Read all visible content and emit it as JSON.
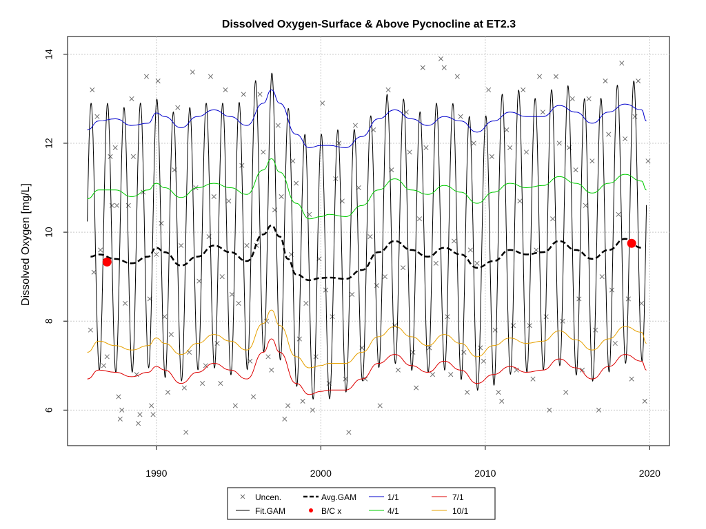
{
  "chart_data": {
    "type": "line",
    "title": "Dissolved Oxygen-Surface & Above Pycnocline at ET2.3",
    "xlabel": "",
    "ylabel": "Dissolved Oxygen [mg/L]",
    "xlim": [
      1984.6,
      2021.2
    ],
    "ylim": [
      5.2,
      14.4
    ],
    "x_ticks": [
      1990,
      2000,
      2010,
      2020
    ],
    "y_ticks": [
      6,
      8,
      10,
      12,
      14
    ],
    "grid": true,
    "legend_position": "bottom",
    "legend": [
      "Uncen.",
      "Fit.GAM",
      "Avg.GAM",
      "B/C x",
      "1/1",
      "4/1",
      "7/1",
      "10/1"
    ],
    "colors": {
      "uncen": "#6e6e6e",
      "fit": "#000000",
      "avg": "#000000",
      "bc": "#ff0000",
      "jan": "#0000cc",
      "apr": "#00cc00",
      "jul": "#dd0000",
      "oct": "#e6a000"
    },
    "bc_points": [
      {
        "x": 1987.0,
        "y": 9.33
      },
      {
        "x": 2018.9,
        "y": 9.75
      }
    ],
    "fit_gam": {
      "description_period_years": 1.0,
      "x_range": [
        1985.8,
        2019.8
      ],
      "annual_max_min": [
        [
          1986,
          12.9,
          6.9
        ],
        [
          1987,
          12.9,
          6.9
        ],
        [
          1988,
          12.8,
          6.8
        ],
        [
          1989,
          12.9,
          6.9
        ],
        [
          1990,
          13.0,
          7.0
        ],
        [
          1991,
          12.7,
          6.5
        ],
        [
          1992,
          12.8,
          6.8
        ],
        [
          1993,
          12.9,
          7.0
        ],
        [
          1994,
          12.9,
          6.9
        ],
        [
          1995,
          12.9,
          6.7
        ],
        [
          1996,
          13.4,
          7.1
        ],
        [
          1997,
          13.6,
          7.5
        ],
        [
          1998,
          12.8,
          6.8
        ],
        [
          1999,
          12.2,
          6.3
        ],
        [
          2000,
          12.2,
          6.2
        ],
        [
          2001,
          12.3,
          6.3
        ],
        [
          2002,
          12.3,
          6.5
        ],
        [
          2003,
          12.6,
          6.8
        ],
        [
          2004,
          13.1,
          7.1
        ],
        [
          2005,
          13.0,
          7.0
        ],
        [
          2006,
          12.7,
          6.8
        ],
        [
          2007,
          12.9,
          6.9
        ],
        [
          2008,
          12.9,
          6.9
        ],
        [
          2009,
          12.6,
          6.5
        ],
        [
          2010,
          12.6,
          6.4
        ],
        [
          2011,
          13.1,
          6.7
        ],
        [
          2012,
          13.2,
          6.9
        ],
        [
          2013,
          13.0,
          6.8
        ],
        [
          2014,
          13.2,
          7.0
        ],
        [
          2015,
          13.3,
          7.0
        ],
        [
          2016,
          13.0,
          6.6
        ],
        [
          2017,
          13.0,
          6.7
        ],
        [
          2018,
          13.3,
          7.0
        ],
        [
          2019,
          13.4,
          7.1
        ]
      ]
    },
    "series": [
      {
        "name": "1/1",
        "key": "jan",
        "x": [
          1985.8,
          1986.5,
          1987.5,
          1988.5,
          1989.5,
          1990.0,
          1990.5,
          1991.5,
          1992.5,
          1993.5,
          1994.5,
          1995.5,
          1996.5,
          1997.0,
          1997.5,
          1998.5,
          1999.3,
          2000.0,
          2000.5,
          2001.5,
          2002.5,
          2003.5,
          2004.5,
          2005.5,
          2006.5,
          2007.5,
          2008.5,
          2009.5,
          2010.5,
          2011.5,
          2012.5,
          2013.5,
          2014.5,
          2015.5,
          2016.5,
          2017.5,
          2018.5,
          2019.5,
          2019.8
        ],
        "y": [
          12.3,
          12.5,
          12.55,
          12.4,
          12.45,
          12.68,
          12.6,
          12.35,
          12.6,
          12.75,
          12.6,
          12.4,
          12.9,
          13.2,
          12.9,
          12.2,
          11.9,
          11.95,
          11.95,
          11.9,
          12.15,
          12.55,
          12.75,
          12.55,
          12.4,
          12.6,
          12.5,
          12.25,
          12.5,
          12.7,
          12.6,
          12.6,
          12.85,
          12.7,
          12.45,
          12.7,
          12.88,
          12.75,
          12.5
        ]
      },
      {
        "name": "4/1",
        "key": "apr",
        "x": [
          1985.8,
          1986.5,
          1987.5,
          1988.5,
          1989.5,
          1990.0,
          1990.5,
          1991.5,
          1992.5,
          1993.5,
          1994.5,
          1995.5,
          1996.5,
          1997.0,
          1997.5,
          1998.5,
          1999.3,
          2000.0,
          2000.5,
          2001.5,
          2002.5,
          2003.5,
          2004.5,
          2005.5,
          2006.5,
          2007.5,
          2008.5,
          2009.5,
          2010.5,
          2011.5,
          2012.5,
          2013.5,
          2014.5,
          2015.5,
          2016.5,
          2017.5,
          2018.5,
          2019.5,
          2019.8
        ],
        "y": [
          10.75,
          10.95,
          10.95,
          10.8,
          10.95,
          11.1,
          11.0,
          10.78,
          11.0,
          11.1,
          11.0,
          10.85,
          11.4,
          11.65,
          11.35,
          10.65,
          10.3,
          10.35,
          10.4,
          10.35,
          10.6,
          10.95,
          11.2,
          10.95,
          10.85,
          11.05,
          10.9,
          10.65,
          10.9,
          11.1,
          11.0,
          11.05,
          11.25,
          11.1,
          10.88,
          11.1,
          11.3,
          11.15,
          10.95
        ]
      },
      {
        "name": "7/1",
        "key": "jul",
        "x": [
          1985.8,
          1986.5,
          1987.5,
          1988.5,
          1989.5,
          1990.0,
          1990.5,
          1991.5,
          1992.5,
          1993.5,
          1994.5,
          1995.5,
          1996.5,
          1997.0,
          1997.5,
          1998.5,
          1999.3,
          2000.0,
          2000.5,
          2001.5,
          2002.5,
          2003.5,
          2004.5,
          2005.5,
          2006.5,
          2007.5,
          2008.5,
          2009.5,
          2010.5,
          2011.5,
          2012.5,
          2013.5,
          2014.5,
          2015.5,
          2016.5,
          2017.5,
          2018.5,
          2019.5,
          2019.8
        ],
        "y": [
          6.7,
          6.9,
          6.85,
          6.75,
          6.85,
          6.98,
          6.9,
          6.6,
          6.85,
          7.05,
          6.9,
          6.7,
          7.3,
          7.6,
          7.3,
          6.6,
          6.35,
          6.42,
          6.45,
          6.45,
          6.7,
          7.05,
          7.25,
          7.0,
          6.85,
          7.1,
          6.9,
          6.6,
          6.8,
          6.98,
          6.85,
          6.9,
          7.15,
          6.95,
          6.7,
          6.98,
          7.25,
          7.1,
          6.9
        ]
      },
      {
        "name": "10/1",
        "key": "oct",
        "x": [
          1985.8,
          1986.5,
          1987.5,
          1988.5,
          1989.5,
          1990.0,
          1990.5,
          1991.5,
          1992.5,
          1993.5,
          1994.5,
          1995.5,
          1996.5,
          1997.0,
          1997.5,
          1998.5,
          1999.3,
          2000.0,
          2000.5,
          2001.5,
          2002.5,
          2003.5,
          2004.5,
          2005.5,
          2006.5,
          2007.5,
          2008.5,
          2009.5,
          2010.5,
          2011.5,
          2012.5,
          2013.5,
          2014.5,
          2015.5,
          2016.5,
          2017.5,
          2018.5,
          2019.5,
          2019.8
        ],
        "y": [
          7.3,
          7.55,
          7.45,
          7.35,
          7.45,
          7.62,
          7.5,
          7.25,
          7.5,
          7.7,
          7.55,
          7.35,
          7.95,
          8.25,
          7.9,
          7.2,
          6.95,
          7.0,
          7.05,
          7.05,
          7.3,
          7.65,
          7.88,
          7.65,
          7.45,
          7.7,
          7.5,
          7.2,
          7.45,
          7.62,
          7.5,
          7.55,
          7.78,
          7.58,
          7.35,
          7.6,
          7.88,
          7.75,
          7.5
        ]
      },
      {
        "name": "Avg.GAM",
        "key": "avg",
        "x": [
          1986.0,
          1986.5,
          1987.5,
          1988.5,
          1989.5,
          1990.0,
          1990.5,
          1991.5,
          1992.5,
          1993.5,
          1994.5,
          1995.5,
          1996.5,
          1997.0,
          1997.5,
          1998.0,
          1998.5,
          1999.3,
          2000.0,
          2000.5,
          2001.5,
          2002.5,
          2003.5,
          2004.5,
          2005.5,
          2006.5,
          2007.5,
          2008.5,
          2009.5,
          2010.5,
          2011.5,
          2012.5,
          2013.5,
          2014.5,
          2015.5,
          2016.5,
          2017.5,
          2018.5,
          2019.5
        ],
        "y": [
          9.45,
          9.5,
          9.4,
          9.3,
          9.45,
          9.65,
          9.55,
          9.25,
          9.45,
          9.7,
          9.55,
          9.35,
          9.95,
          10.15,
          9.9,
          9.4,
          9.05,
          8.92,
          8.97,
          8.98,
          8.95,
          9.15,
          9.55,
          9.8,
          9.6,
          9.45,
          9.65,
          9.5,
          9.2,
          9.35,
          9.6,
          9.5,
          9.55,
          9.8,
          9.6,
          9.4,
          9.6,
          9.85,
          9.65
        ]
      }
    ],
    "uncensored_points": [
      [
        1986.0,
        7.8
      ],
      [
        1986.1,
        13.2
      ],
      [
        1986.2,
        9.1
      ],
      [
        1986.4,
        12.6
      ],
      [
        1986.6,
        9.6
      ],
      [
        1986.8,
        7.0
      ],
      [
        1987.0,
        7.2
      ],
      [
        1987.2,
        11.7
      ],
      [
        1987.3,
        10.6
      ],
      [
        1987.5,
        11.9
      ],
      [
        1987.6,
        10.6
      ],
      [
        1987.7,
        6.3
      ],
      [
        1987.8,
        5.8
      ],
      [
        1987.9,
        6.0
      ],
      [
        1988.1,
        8.4
      ],
      [
        1988.3,
        10.6
      ],
      [
        1988.5,
        13.0
      ],
      [
        1988.6,
        11.7
      ],
      [
        1988.8,
        6.8
      ],
      [
        1988.9,
        5.7
      ],
      [
        1989.0,
        5.9
      ],
      [
        1989.2,
        10.9
      ],
      [
        1989.4,
        13.5
      ],
      [
        1989.6,
        8.5
      ],
      [
        1989.7,
        6.1
      ],
      [
        1989.8,
        5.9
      ],
      [
        1990.0,
        9.5
      ],
      [
        1990.1,
        13.4
      ],
      [
        1990.3,
        10.2
      ],
      [
        1990.5,
        8.1
      ],
      [
        1990.7,
        6.4
      ],
      [
        1990.9,
        7.7
      ],
      [
        1991.1,
        11.4
      ],
      [
        1991.3,
        12.8
      ],
      [
        1991.5,
        9.7
      ],
      [
        1991.7,
        6.5
      ],
      [
        1991.8,
        5.5
      ],
      [
        1992.0,
        7.3
      ],
      [
        1992.2,
        13.6
      ],
      [
        1992.4,
        11.0
      ],
      [
        1992.6,
        8.9
      ],
      [
        1992.8,
        6.6
      ],
      [
        1993.0,
        7.0
      ],
      [
        1993.2,
        9.9
      ],
      [
        1993.3,
        13.5
      ],
      [
        1993.5,
        10.8
      ],
      [
        1993.7,
        7.5
      ],
      [
        1993.9,
        6.6
      ],
      [
        1994.0,
        9.0
      ],
      [
        1994.2,
        13.2
      ],
      [
        1994.4,
        10.7
      ],
      [
        1994.6,
        8.6
      ],
      [
        1994.8,
        6.1
      ],
      [
        1995.0,
        8.4
      ],
      [
        1995.2,
        11.5
      ],
      [
        1995.3,
        13.1
      ],
      [
        1995.5,
        9.7
      ],
      [
        1995.7,
        7.1
      ],
      [
        1995.9,
        6.3
      ],
      [
        1996.1,
        9.7
      ],
      [
        1996.3,
        13.1
      ],
      [
        1996.5,
        11.8
      ],
      [
        1996.7,
        8.0
      ],
      [
        1996.8,
        7.2
      ],
      [
        1997.0,
        6.9
      ],
      [
        1997.2,
        10.5
      ],
      [
        1997.4,
        12.4
      ],
      [
        1997.6,
        10.8
      ],
      [
        1997.8,
        5.8
      ],
      [
        1998.0,
        6.1
      ],
      [
        1998.2,
        9.5
      ],
      [
        1998.3,
        11.6
      ],
      [
        1998.5,
        11.1
      ],
      [
        1998.7,
        7.6
      ],
      [
        1998.9,
        6.2
      ],
      [
        1999.1,
        8.4
      ],
      [
        1999.3,
        10.4
      ],
      [
        1999.5,
        6.0
      ],
      [
        1999.7,
        7.2
      ],
      [
        1999.9,
        9.4
      ],
      [
        2000.1,
        12.9
      ],
      [
        2000.3,
        8.7
      ],
      [
        2000.5,
        6.6
      ],
      [
        2000.7,
        8.1
      ],
      [
        2000.9,
        11.2
      ],
      [
        2001.1,
        12.0
      ],
      [
        2001.3,
        10.7
      ],
      [
        2001.5,
        6.7
      ],
      [
        2001.7,
        5.5
      ],
      [
        2001.9,
        8.6
      ],
      [
        2002.1,
        12.4
      ],
      [
        2002.3,
        11.0
      ],
      [
        2002.5,
        7.4
      ],
      [
        2002.7,
        6.7
      ],
      [
        2003.0,
        9.9
      ],
      [
        2003.2,
        12.3
      ],
      [
        2003.4,
        8.8
      ],
      [
        2003.6,
        6.1
      ],
      [
        2003.9,
        9.0
      ],
      [
        2004.1,
        13.2
      ],
      [
        2004.3,
        11.4
      ],
      [
        2004.5,
        7.9
      ],
      [
        2004.7,
        6.9
      ],
      [
        2005.0,
        9.2
      ],
      [
        2005.2,
        12.7
      ],
      [
        2005.4,
        11.8
      ],
      [
        2005.6,
        7.3
      ],
      [
        2005.8,
        6.5
      ],
      [
        2006.0,
        10.3
      ],
      [
        2006.2,
        13.7
      ],
      [
        2006.4,
        11.9
      ],
      [
        2006.6,
        7.4
      ],
      [
        2006.8,
        6.8
      ],
      [
        2007.0,
        9.3
      ],
      [
        2007.3,
        13.9
      ],
      [
        2007.5,
        13.7
      ],
      [
        2007.7,
        8.1
      ],
      [
        2007.9,
        6.8
      ],
      [
        2008.1,
        9.8
      ],
      [
        2008.3,
        13.5
      ],
      [
        2008.5,
        12.6
      ],
      [
        2008.7,
        7.3
      ],
      [
        2008.9,
        6.4
      ],
      [
        2009.1,
        9.6
      ],
      [
        2009.3,
        12.0
      ],
      [
        2009.5,
        9.3
      ],
      [
        2009.7,
        7.4
      ],
      [
        2009.9,
        7.1
      ],
      [
        2010.2,
        13.2
      ],
      [
        2010.4,
        11.7
      ],
      [
        2010.6,
        7.8
      ],
      [
        2010.8,
        6.4
      ],
      [
        2011.0,
        6.2
      ],
      [
        2011.3,
        12.3
      ],
      [
        2011.5,
        11.9
      ],
      [
        2011.7,
        7.9
      ],
      [
        2011.9,
        6.9
      ],
      [
        2012.1,
        10.7
      ],
      [
        2012.3,
        13.2
      ],
      [
        2012.5,
        11.8
      ],
      [
        2012.7,
        7.9
      ],
      [
        2012.9,
        6.7
      ],
      [
        2013.1,
        9.6
      ],
      [
        2013.3,
        13.5
      ],
      [
        2013.5,
        12.7
      ],
      [
        2013.7,
        8.1
      ],
      [
        2013.9,
        6.0
      ],
      [
        2014.1,
        10.3
      ],
      [
        2014.3,
        13.5
      ],
      [
        2014.5,
        12.0
      ],
      [
        2014.7,
        8.0
      ],
      [
        2014.9,
        6.4
      ],
      [
        2015.1,
        11.9
      ],
      [
        2015.3,
        13.0
      ],
      [
        2015.5,
        11.4
      ],
      [
        2015.7,
        8.5
      ],
      [
        2015.9,
        6.9
      ],
      [
        2016.1,
        10.6
      ],
      [
        2016.3,
        13.0
      ],
      [
        2016.5,
        11.6
      ],
      [
        2016.7,
        7.8
      ],
      [
        2016.9,
        6.0
      ],
      [
        2017.1,
        9.0
      ],
      [
        2017.3,
        13.4
      ],
      [
        2017.5,
        12.2
      ],
      [
        2017.7,
        8.7
      ],
      [
        2017.9,
        7.5
      ],
      [
        2018.1,
        10.4
      ],
      [
        2018.3,
        13.8
      ],
      [
        2018.5,
        12.1
      ],
      [
        2018.7,
        8.5
      ],
      [
        2018.9,
        6.7
      ],
      [
        2019.1,
        12.6
      ],
      [
        2019.3,
        13.4
      ],
      [
        2019.5,
        8.4
      ],
      [
        2019.7,
        6.2
      ],
      [
        2019.9,
        11.6
      ]
    ]
  }
}
